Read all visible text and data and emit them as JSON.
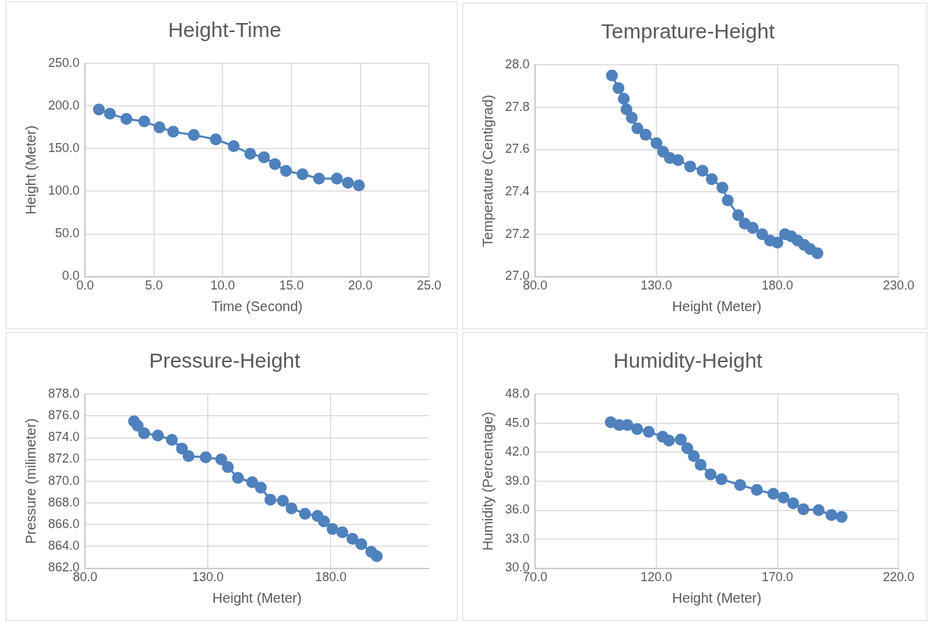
{
  "chart_data": [
    {
      "type": "line",
      "title": "Height-Time",
      "xlabel": "Time (Second)",
      "ylabel": "Height (Meter)",
      "marker": "circle",
      "line_style": "solid",
      "grid": true,
      "x": [
        1.0,
        1.8,
        3.0,
        4.3,
        5.4,
        6.4,
        7.9,
        9.5,
        10.8,
        12.0,
        13.0,
        13.8,
        14.6,
        15.8,
        17.0,
        18.3,
        19.1,
        19.9
      ],
      "series": [
        {
          "color": "#4f81bd",
          "values": [
            196,
            191,
            185,
            182,
            175,
            170,
            166,
            161,
            153,
            144,
            140,
            132,
            124,
            120,
            115,
            115,
            110,
            107
          ]
        }
      ],
      "xlim": [
        0,
        25
      ],
      "xticks": [
        {
          "value": 0,
          "label": "0.0"
        },
        {
          "value": 5,
          "label": "5.0"
        },
        {
          "value": 10,
          "label": "10.0"
        },
        {
          "value": 15,
          "label": "15.0"
        },
        {
          "value": 20,
          "label": "20.0"
        },
        {
          "value": 25,
          "label": "25.0"
        }
      ],
      "ylim": [
        0,
        250
      ],
      "yticks": [
        {
          "value": 0,
          "label": "0.0"
        },
        {
          "value": 50,
          "label": "50.0"
        },
        {
          "value": 100,
          "label": "100.0"
        },
        {
          "value": 150,
          "label": "150.0"
        },
        {
          "value": 200,
          "label": "200.0"
        },
        {
          "value": 250,
          "label": "250.0"
        }
      ]
    },
    {
      "type": "line",
      "title": "Temprature-Height",
      "xlabel": "Height (Meter)",
      "ylabel": "Temperature (Centigrad)",
      "marker": "circle",
      "line_style": "solid",
      "grid": true,
      "x": [
        111.7,
        114.4,
        116.6,
        117.7,
        119.9,
        122.2,
        125.6,
        130.1,
        132.8,
        135.6,
        139.0,
        144.0,
        149.1,
        152.9,
        157.3,
        159.5,
        163.8,
        166.5,
        169.8,
        173.7,
        176.9,
        180.0,
        183.1,
        185.7,
        188.3,
        191.0,
        193.5,
        196.5
      ],
      "series": [
        {
          "color": "#4f81bd",
          "values": [
            27.95,
            27.89,
            27.84,
            27.79,
            27.75,
            27.7,
            27.67,
            27.63,
            27.59,
            27.56,
            27.55,
            27.52,
            27.5,
            27.46,
            27.42,
            27.36,
            27.29,
            27.25,
            27.23,
            27.2,
            27.17,
            27.16,
            27.2,
            27.19,
            27.17,
            27.15,
            27.13,
            27.11
          ]
        }
      ],
      "xlim": [
        80,
        230
      ],
      "xticks": [
        {
          "value": 80,
          "label": "80.0"
        },
        {
          "value": 130,
          "label": "130.0"
        },
        {
          "value": 180,
          "label": "180.0"
        },
        {
          "value": 230,
          "label": "230.0"
        }
      ],
      "ylim": [
        27,
        28
      ],
      "yticks": [
        {
          "value": 27,
          "label": "27.0"
        },
        {
          "value": 27.2,
          "label": "27.2"
        },
        {
          "value": 27.4,
          "label": "27.4"
        },
        {
          "value": 27.6,
          "label": "27.6"
        },
        {
          "value": 27.8,
          "label": "27.8"
        },
        {
          "value": 28,
          "label": "28.0"
        }
      ]
    },
    {
      "type": "line",
      "title": "Pressure-Height",
      "xlabel": "Height (Meter)",
      "ylabel": "Pressure (milimeter)",
      "marker": "circle",
      "line_style": "solid",
      "grid": true,
      "x": [
        99.9,
        101.4,
        104.0,
        109.6,
        115.3,
        119.4,
        122.1,
        129.1,
        135.4,
        138.1,
        142.2,
        148.0,
        151.5,
        155.4,
        160.5,
        164.0,
        169.5,
        174.6,
        177.2,
        180.7,
        184.7,
        188.8,
        192.4,
        196.5,
        198.7
      ],
      "series": [
        {
          "color": "#4f81bd",
          "values": [
            875.5,
            875.1,
            874.4,
            874.2,
            873.8,
            873.0,
            872.3,
            872.2,
            872.0,
            871.3,
            870.3,
            869.9,
            869.4,
            868.3,
            868.2,
            867.5,
            867.0,
            866.8,
            866.3,
            865.6,
            865.3,
            864.7,
            864.2,
            863.5,
            863.1
          ]
        }
      ],
      "xlim": [
        80,
        220
      ],
      "xticks": [
        {
          "value": 80,
          "label": "80.0"
        },
        {
          "value": 130,
          "label": "130.0"
        },
        {
          "value": 180,
          "label": "180.0"
        }
      ],
      "ylim": [
        862,
        878
      ],
      "yticks": [
        {
          "value": 862,
          "label": "862.0"
        },
        {
          "value": 864,
          "label": "864.0"
        },
        {
          "value": 866,
          "label": "866.0"
        },
        {
          "value": 868,
          "label": "868.0"
        },
        {
          "value": 870,
          "label": "870.0"
        },
        {
          "value": 872,
          "label": "872.0"
        },
        {
          "value": 874,
          "label": "874.0"
        },
        {
          "value": 876,
          "label": "876.0"
        },
        {
          "value": 878,
          "label": "878.0"
        }
      ]
    },
    {
      "type": "line",
      "title": "Humidity-Height",
      "xlabel": "Height (Meter)",
      "ylabel": "Humidity (Percentage)",
      "marker": "circle",
      "line_style": "solid",
      "grid": true,
      "x": [
        101.2,
        104.7,
        108.1,
        112.1,
        116.9,
        122.6,
        125.2,
        130.1,
        132.8,
        135.5,
        138.3,
        142.4,
        146.9,
        154.6,
        161.5,
        168.3,
        172.5,
        176.5,
        180.7,
        187.0,
        192.3,
        196.5
      ],
      "series": [
        {
          "color": "#4f81bd",
          "values": [
            45.1,
            44.8,
            44.8,
            44.4,
            44.1,
            43.6,
            43.2,
            43.3,
            42.4,
            41.6,
            40.7,
            39.7,
            39.2,
            38.6,
            38.1,
            37.7,
            37.3,
            36.7,
            36.1,
            36.0,
            35.5,
            35.3
          ]
        }
      ],
      "xlim": [
        70,
        220
      ],
      "xticks": [
        {
          "value": 70,
          "label": "70.0"
        },
        {
          "value": 120,
          "label": "120.0"
        },
        {
          "value": 170,
          "label": "170.0"
        },
        {
          "value": 220,
          "label": "220.0"
        }
      ],
      "ylim": [
        30,
        48
      ],
      "yticks": [
        {
          "value": 30,
          "label": "30.0"
        },
        {
          "value": 33,
          "label": "33.0"
        },
        {
          "value": 36,
          "label": "36.0"
        },
        {
          "value": 39,
          "label": "39.0"
        },
        {
          "value": 42,
          "label": "42.0"
        },
        {
          "value": 45,
          "label": "45.0"
        },
        {
          "value": 48,
          "label": "48.0"
        }
      ]
    }
  ]
}
